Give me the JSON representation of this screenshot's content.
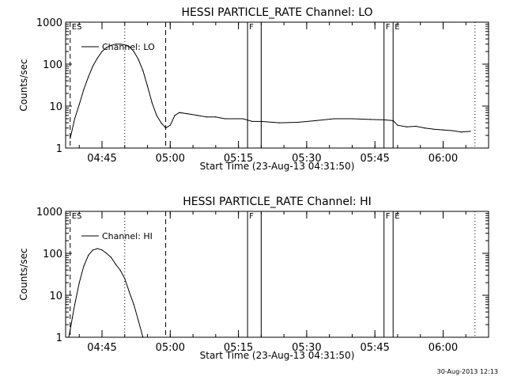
{
  "chart_data": [
    {
      "type": "line",
      "title": "HESSI PARTICLE_RATE Channel: LO",
      "xlabel": "Start Time (23-Aug-13 04:31:50)",
      "ylabel": "Counts/sec",
      "yscale": "log",
      "ylim": [
        1,
        1000
      ],
      "yticks": [
        1,
        10,
        100,
        1000
      ],
      "xlim_minutes": [
        "04:37",
        "06:10"
      ],
      "xticks": [
        "04:45",
        "05:00",
        "05:15",
        "05:30",
        "05:45",
        "06:00"
      ],
      "legend": "Channel: LO",
      "grid": false,
      "series": [
        {
          "name": "Channel: LO",
          "x": [
            "04:38:00",
            "04:39:00",
            "04:40:00",
            "04:41:00",
            "04:42:00",
            "04:43:00",
            "04:44:00",
            "04:45:00",
            "04:46:00",
            "04:47:00",
            "04:48:00",
            "04:49:00",
            "04:50:00",
            "04:51:00",
            "04:52:00",
            "04:53:00",
            "04:54:00",
            "04:55:00",
            "04:56:00",
            "04:57:00",
            "04:58:00",
            "04:59:00",
            "05:00:00",
            "05:01:00",
            "05:02:00",
            "05:04:00",
            "05:06:00",
            "05:08:00",
            "05:10:00",
            "05:12:00",
            "05:14:00",
            "05:16:00",
            "05:18:00",
            "05:20:00",
            "05:24:00",
            "05:28:00",
            "05:32:00",
            "05:36:00",
            "05:40:00",
            "05:44:00",
            "05:47:00",
            "05:49:00",
            "05:50:00",
            "05:52:00",
            "05:54:00",
            "05:56:00",
            "05:58:00",
            "06:00:00",
            "06:02:00",
            "06:04:00",
            "06:06:00"
          ],
          "values": [
            1.7,
            5,
            11,
            25,
            50,
            90,
            140,
            200,
            250,
            280,
            300,
            300,
            290,
            260,
            200,
            130,
            70,
            30,
            12,
            6,
            4,
            3,
            3.5,
            6,
            7,
            6.5,
            6,
            5.5,
            5.5,
            5,
            5,
            5,
            4.3,
            4.3,
            4,
            4.1,
            4.5,
            5,
            5,
            4.8,
            4.7,
            4.5,
            3.5,
            3.2,
            3.3,
            3,
            2.8,
            2.7,
            2.6,
            2.4,
            2.5
          ]
        }
      ],
      "markers": [
        {
          "time": "04:38:00",
          "style": "dashed",
          "label": "ES"
        },
        {
          "time": "04:50:00",
          "style": "dotted",
          "label": ""
        },
        {
          "time": "04:59:00",
          "style": "dashed",
          "label": ""
        },
        {
          "time": "05:17:00",
          "style": "solid",
          "label": "F"
        },
        {
          "time": "05:20:00",
          "style": "solid",
          "label": ""
        },
        {
          "time": "05:47:00",
          "style": "solid",
          "label": "F"
        },
        {
          "time": "05:49:00",
          "style": "solid",
          "label": "E"
        },
        {
          "time": "06:07:00",
          "style": "dotted",
          "label": ""
        }
      ]
    },
    {
      "type": "line",
      "title": "HESSI PARTICLE_RATE Channel: HI",
      "xlabel": "Start Time (23-Aug-13 04:31:50)",
      "ylabel": "Counts/sec",
      "yscale": "log",
      "ylim": [
        1,
        1000
      ],
      "yticks": [
        1,
        10,
        100,
        1000
      ],
      "xlim_minutes": [
        "04:37",
        "06:10"
      ],
      "xticks": [
        "04:45",
        "05:00",
        "05:15",
        "05:30",
        "05:45",
        "06:00"
      ],
      "legend": "Channel: HI",
      "grid": false,
      "series": [
        {
          "name": "Channel: HI",
          "x": [
            "04:37:30",
            "04:38:00",
            "04:38:30",
            "04:39:00",
            "04:40:00",
            "04:41:00",
            "04:42:00",
            "04:43:00",
            "04:44:00",
            "04:45:00",
            "04:46:00",
            "04:47:00",
            "04:48:00",
            "04:49:00",
            "04:50:00",
            "04:51:00",
            "04:52:00",
            "04:53:00",
            "04:54:00"
          ],
          "values": [
            0.8,
            1.5,
            3,
            6,
            20,
            50,
            90,
            120,
            130,
            120,
            100,
            80,
            55,
            40,
            25,
            12,
            6,
            2.5,
            1
          ]
        }
      ],
      "markers": [
        {
          "time": "04:38:00",
          "style": "dashed",
          "label": "ES"
        },
        {
          "time": "04:50:00",
          "style": "dotted",
          "label": ""
        },
        {
          "time": "04:59:00",
          "style": "dashed",
          "label": ""
        },
        {
          "time": "05:17:00",
          "style": "solid",
          "label": "F"
        },
        {
          "time": "05:20:00",
          "style": "solid",
          "label": ""
        },
        {
          "time": "05:47:00",
          "style": "solid",
          "label": "F"
        },
        {
          "time": "05:49:00",
          "style": "solid",
          "label": "E"
        },
        {
          "time": "06:07:00",
          "style": "dotted",
          "label": ""
        }
      ]
    }
  ],
  "footer": "30-Aug-2013 12:13"
}
